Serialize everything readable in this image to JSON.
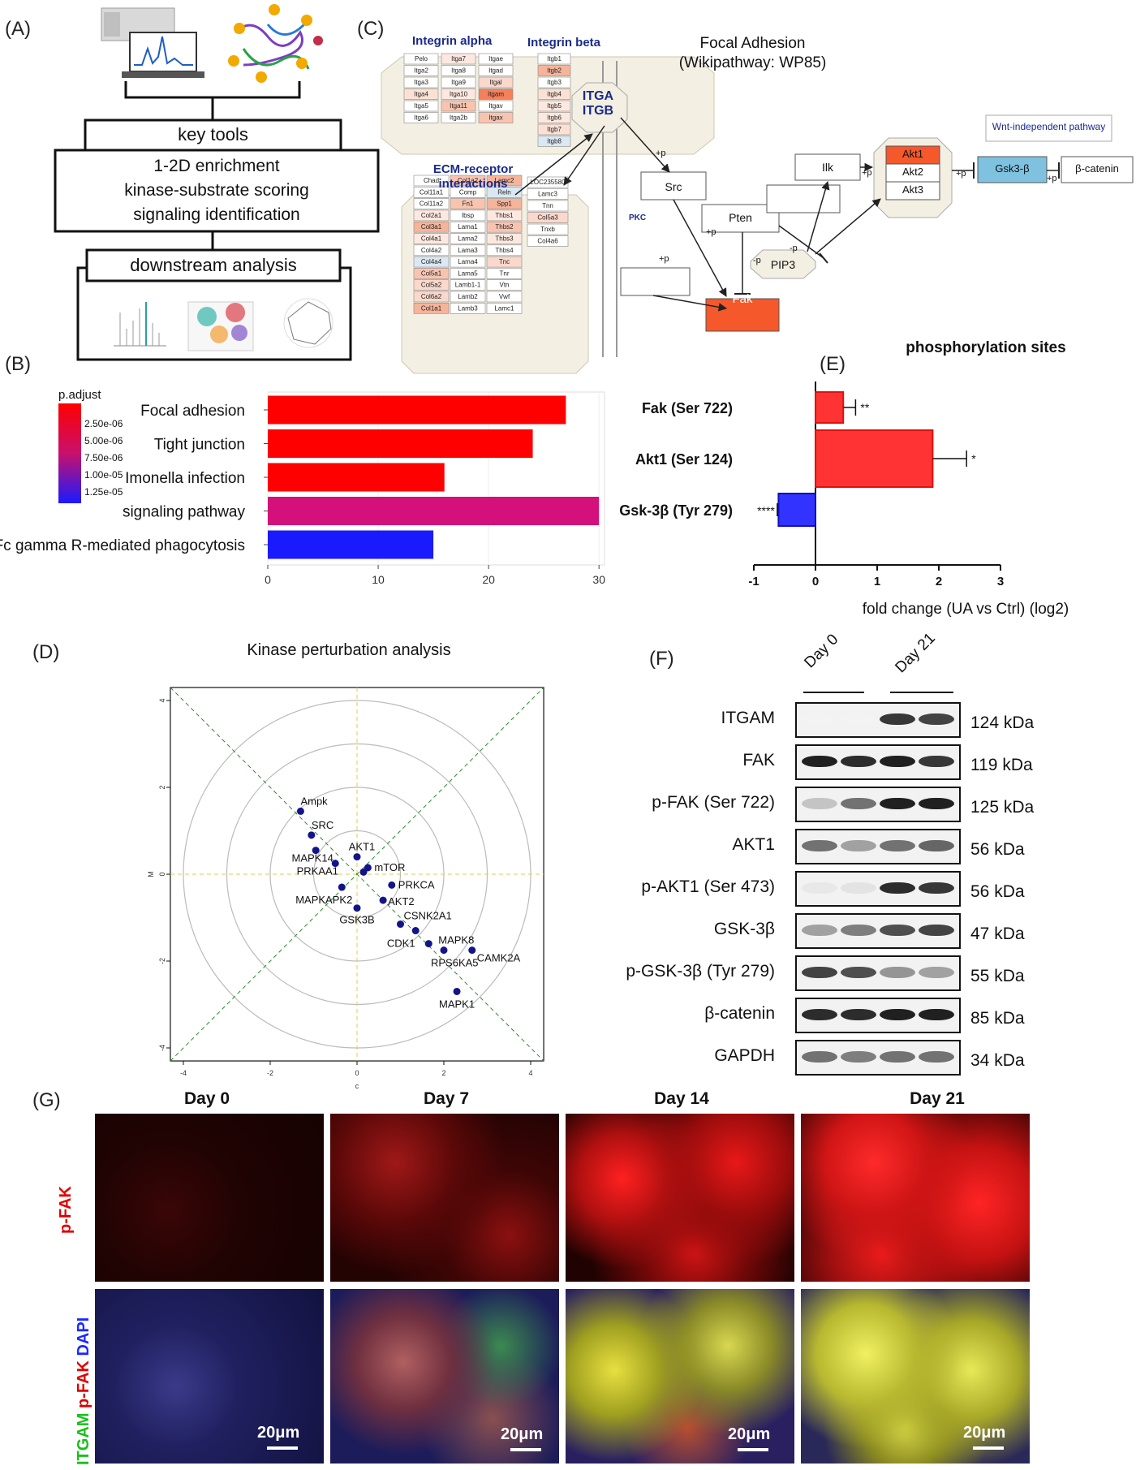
{
  "panels": {
    "A": "(A)",
    "B": "(B)",
    "C": "(C)",
    "D": "(D)",
    "E": "(E)",
    "F": "(F)",
    "G": "(G)"
  },
  "panelA": {
    "box1": "key tools",
    "box2_lines": [
      "1-2D enrichment",
      "kinase-substrate scoring",
      "signaling identification"
    ],
    "box3": "downstream analysis"
  },
  "panelC": {
    "title_line1": "Focal Adhesion",
    "title_line2": "(Wikipathway: WP85)",
    "integrin_alpha": "Integrin alpha",
    "integrin_beta": "Integrin beta",
    "ecm_line1": "ECM-receptor",
    "ecm_line2": "interactions",
    "itga": "ITGA",
    "itgb": "ITGB",
    "wnt": "Wnt-independent pathway",
    "nodes": {
      "src": "Src",
      "pkc": "PKC",
      "fak": "Fak",
      "pten": "Pten",
      "pip3": "PIP3",
      "ilk": "Ilk",
      "akt1": "Akt1",
      "akt2": "Akt2",
      "akt3": "Akt3",
      "gsk": "Gsk3-β",
      "bcat": "β-catenin"
    },
    "edge_labels": {
      "itg_src": "+p",
      "src_fak": "+p",
      "pkc_fak": "+p",
      "pten_fak": "-p",
      "pten_pip3": "-p",
      "ilk_akt": "+p",
      "akt_gsk": "+p",
      "gsk_bcat": "+p"
    },
    "alpha_table": [
      [
        "Pelo",
        "Itga7",
        "Itgae"
      ],
      [
        "Itga2",
        "Itga8",
        "Itgad"
      ],
      [
        "Itga3",
        "Itga9",
        "Itgal"
      ],
      [
        "Itga4",
        "Itga10",
        "Itgam"
      ],
      [
        "Itga5",
        "Itga11",
        "Itgav"
      ],
      [
        "Itga6",
        "Itga2b",
        "Itgax"
      ]
    ],
    "beta_table": [
      "Itgb1",
      "Itgb2",
      "Itgb3",
      "Itgb4",
      "Itgb5",
      "Itgb6",
      "Itgb7",
      "Itgb8"
    ],
    "ecm_table": [
      [
        "Chad",
        "Col1a2",
        "Lamc2"
      ],
      [
        "Col11a1",
        "Comp",
        "Reln"
      ],
      [
        "Col11a2",
        "Fn1",
        "Spp1"
      ],
      [
        "Col2a1",
        "Ibsp",
        "Thbs1"
      ],
      [
        "Col3a1",
        "Lama1",
        "Thbs2"
      ],
      [
        "Col4a1",
        "Lama2",
        "Thbs3"
      ],
      [
        "Col4a2",
        "Lama3",
        "Thbs4"
      ],
      [
        "Col4a4",
        "Lama4",
        "Tnc"
      ],
      [
        "Col5a1",
        "Lama5",
        "Tnr"
      ],
      [
        "Col5a2",
        "Lamb1-1",
        "Vtn"
      ],
      [
        "Col6a2",
        "Lamb2",
        "Vwf"
      ],
      [
        "Col1a1",
        "Lamb3",
        "Lamc1"
      ]
    ],
    "ecm_side": [
      "LOC235580",
      "Lamc3",
      "Tnn",
      "Col5a3",
      "Tnxb",
      "Col4a6"
    ]
  },
  "panelB": {
    "legend_title": "p.adjust",
    "legend_ticks": [
      "2.50e-06",
      "5.00e-06",
      "7.50e-06",
      "1.00e-05",
      "1.25e-05"
    ],
    "colors": {
      "high": "#ff0000",
      "low": "#1a1aff"
    }
  },
  "panelE": {
    "title": "phosphorylation sites",
    "xlabel": "fold change (UA vs Ctrl) (log2)"
  },
  "panelD": {
    "title": "Kinase perturbation analysis",
    "xlabel": "c",
    "ylabel": "M"
  },
  "panelF": {
    "day0": "Day 0",
    "day21": "Day 21",
    "rows": [
      {
        "label": "ITGAM",
        "kda": "124 kDa"
      },
      {
        "label": "FAK",
        "kda": "119 kDa"
      },
      {
        "label": "p-FAK (Ser 722)",
        "kda": "125 kDa"
      },
      {
        "label": "AKT1",
        "kda": "56 kDa"
      },
      {
        "label": "p-AKT1 (Ser 473)",
        "kda": "56 kDa"
      },
      {
        "label": "GSK-3β",
        "kda": "47 kDa"
      },
      {
        "label": "p-GSK-3β (Tyr 279)",
        "kda": "55 kDa"
      },
      {
        "label": "β-catenin",
        "kda": "85 kDa"
      },
      {
        "label": "GAPDH",
        "kda": "34 kDa"
      }
    ]
  },
  "panelG": {
    "days": [
      "Day 0",
      "Day 7",
      "Day 14",
      "Day 21"
    ],
    "row1_label": "p-FAK",
    "row2_label_parts": [
      "ITGAM ",
      "p-FAK ",
      "DAPI"
    ],
    "scale": "20μm"
  },
  "chart_data": [
    {
      "type": "bar",
      "orientation": "horizontal",
      "categories": [
        "Focal adhesion",
        "Tight junction",
        "Imonella infection",
        "signaling pathway",
        "Fc gamma R-mediated phagocytosis"
      ],
      "values": [
        27,
        24,
        16,
        30,
        15
      ],
      "colors": [
        "#ff0000",
        "#ff0000",
        "#ff0000",
        "#d4107a",
        "#1a1aff"
      ],
      "xlim": [
        0,
        30.5
      ],
      "xticks": [
        0,
        10,
        20,
        30
      ],
      "legend_title": "p.adjust"
    },
    {
      "type": "bar",
      "orientation": "horizontal",
      "title": "phosphorylation sites",
      "xlabel": "fold change (UA vs Ctrl) (log2)",
      "categories": [
        "Fak (Ser 722)",
        "Akt1 (Ser 124)",
        "Gsk-3β    (Tyr 279)"
      ],
      "values": [
        0.45,
        1.9,
        -0.6
      ],
      "errors": [
        0.2,
        0.55,
        0.02
      ],
      "significance": [
        "**",
        "*",
        "****"
      ],
      "colors": [
        "#ff3333",
        "#ff3333",
        "#3333ff"
      ],
      "xlim": [
        -1,
        3
      ],
      "xticks": [
        -1,
        0,
        1,
        2,
        3
      ]
    },
    {
      "type": "scatter",
      "title": "Kinase perturbation analysis",
      "xlabel": "c",
      "ylabel": "M",
      "xlim": [
        -4,
        4
      ],
      "ylim": [
        -4,
        4
      ],
      "xticks": [
        -4,
        -2,
        0,
        2,
        4
      ],
      "yticks": [
        -4,
        -2,
        0,
        2,
        4
      ],
      "points": [
        {
          "name": "Ampk",
          "x": -1.3,
          "y": 1.45
        },
        {
          "name": "SRC",
          "x": -1.05,
          "y": 0.9
        },
        {
          "name": "MAPK14",
          "x": -0.95,
          "y": 0.55
        },
        {
          "name": "AKT1",
          "x": 0.0,
          "y": 0.4
        },
        {
          "name": "mTOR",
          "x": 0.25,
          "y": 0.15
        },
        {
          "name": "PRKAA1",
          "x": -0.5,
          "y": 0.25
        },
        {
          "name": "",
          "x": 0.15,
          "y": 0.05
        },
        {
          "name": "PRKCA",
          "x": 0.8,
          "y": -0.25
        },
        {
          "name": "MAPKAPK2",
          "x": -0.35,
          "y": -0.3
        },
        {
          "name": "AKT2",
          "x": 0.6,
          "y": -0.6
        },
        {
          "name": "GSK3B",
          "x": 0.0,
          "y": -0.78
        },
        {
          "name": "CSNK2A1",
          "x": 1.0,
          "y": -1.15
        },
        {
          "name": "CDK1",
          "x": 1.35,
          "y": -1.3
        },
        {
          "name": "MAPK8",
          "x": 1.65,
          "y": -1.6
        },
        {
          "name": "RPS6KA5",
          "x": 2.0,
          "y": -1.75
        },
        {
          "name": "CAMK2A",
          "x": 2.65,
          "y": -1.75
        },
        {
          "name": "MAPK1",
          "x": 2.3,
          "y": -2.7
        }
      ],
      "circle_radii": [
        1,
        2,
        3,
        4
      ]
    }
  ]
}
